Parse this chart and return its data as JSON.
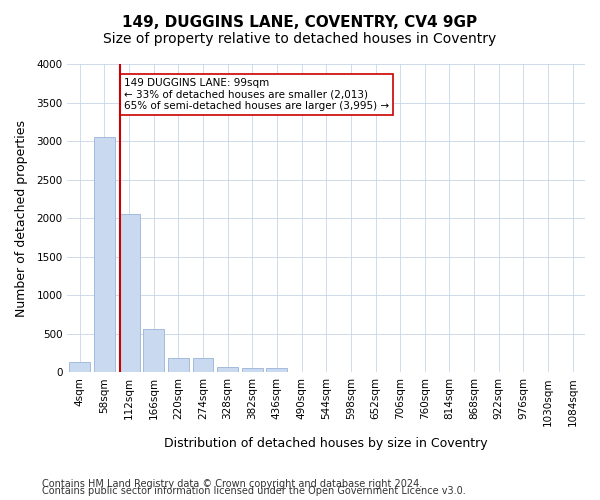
{
  "title": "149, DUGGINS LANE, COVENTRY, CV4 9GP",
  "subtitle": "Size of property relative to detached houses in Coventry",
  "xlabel": "Distribution of detached houses by size in Coventry",
  "ylabel": "Number of detached properties",
  "footnote1": "Contains HM Land Registry data © Crown copyright and database right 2024.",
  "footnote2": "Contains public sector information licensed under the Open Government Licence v3.0.",
  "bin_labels": [
    "4sqm",
    "58sqm",
    "112sqm",
    "166sqm",
    "220sqm",
    "274sqm",
    "328sqm",
    "382sqm",
    "436sqm",
    "490sqm",
    "544sqm",
    "598sqm",
    "652sqm",
    "706sqm",
    "760sqm",
    "814sqm",
    "868sqm",
    "922sqm",
    "976sqm",
    "1030sqm",
    "1084sqm"
  ],
  "bar_values": [
    130,
    3050,
    2050,
    560,
    190,
    190,
    70,
    60,
    55,
    10,
    5,
    2,
    1,
    0,
    0,
    0,
    0,
    0,
    0,
    0,
    0
  ],
  "bar_color": "#c9d9f0",
  "bar_edge_color": "#9ab4d8",
  "property_line_x": 1.65,
  "property_line_color": "#cc0000",
  "annotation_text": "149 DUGGINS LANE: 99sqm\n← 33% of detached houses are smaller (2,013)\n65% of semi-detached houses are larger (3,995) →",
  "annotation_box_color": "#ffffff",
  "annotation_box_edge": "#cc0000",
  "ylim": [
    0,
    4000
  ],
  "yticks": [
    0,
    500,
    1000,
    1500,
    2000,
    2500,
    3000,
    3500,
    4000
  ],
  "background_color": "#ffffff",
  "grid_color": "#c8d4e8",
  "title_fontsize": 11,
  "subtitle_fontsize": 10,
  "axis_label_fontsize": 9,
  "tick_fontsize": 7.5,
  "footnote_fontsize": 7
}
